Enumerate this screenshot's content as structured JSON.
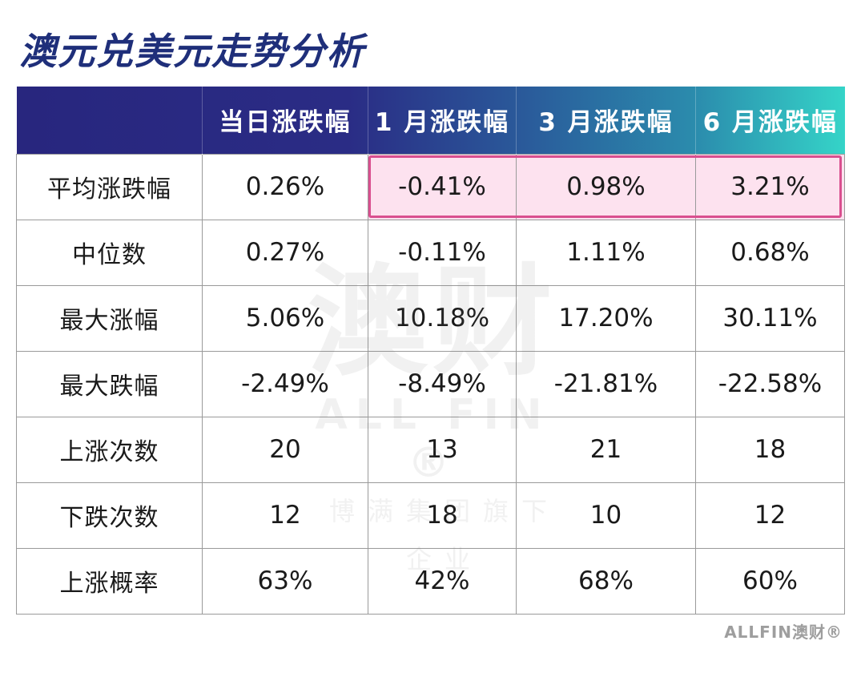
{
  "title": "澳元兑美元走势分析",
  "colors": {
    "title": "#1f2f7a",
    "header_gradient": [
      "#28267e",
      "#2a5c9b",
      "#35d4c8"
    ],
    "highlight_fill": "#fde2ef",
    "highlight_border": "#d94f8f"
  },
  "table": {
    "headers": [
      "",
      "当日涨跌幅",
      "1 月涨跌幅",
      "3 月涨跌幅",
      "6 月涨跌幅"
    ],
    "rows": [
      {
        "label": "平均涨跌幅",
        "cells": [
          "0.26%",
          "-0.41%",
          "0.98%",
          "3.21%"
        ]
      },
      {
        "label": "中位数",
        "cells": [
          "0.27%",
          "-0.11%",
          "1.11%",
          "0.68%"
        ]
      },
      {
        "label": "最大涨幅",
        "cells": [
          "5.06%",
          "10.18%",
          "17.20%",
          "30.11%"
        ]
      },
      {
        "label": "最大跌幅",
        "cells": [
          "-2.49%",
          "-8.49%",
          "-21.81%",
          "-22.58%"
        ]
      },
      {
        "label": "上涨次数",
        "cells": [
          "20",
          "13",
          "21",
          "18"
        ]
      },
      {
        "label": "下跌次数",
        "cells": [
          "12",
          "18",
          "10",
          "12"
        ]
      },
      {
        "label": "上涨概率",
        "cells": [
          "63%",
          "42%",
          "68%",
          "60%"
        ]
      }
    ]
  },
  "watermark": {
    "brand_cn": "澳财",
    "brand_en": "ALL FIN ®",
    "sub": "博满集团旗下企业"
  },
  "logo": "ALLFIN澳财®"
}
